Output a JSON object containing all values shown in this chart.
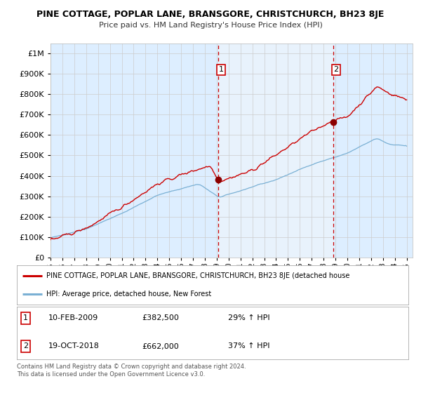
{
  "title": "PINE COTTAGE, POPLAR LANE, BRANSGORE, CHRISTCHURCH, BH23 8JE",
  "subtitle": "Price paid vs. HM Land Registry's House Price Index (HPI)",
  "legend_red": "PINE COTTAGE, POPLAR LANE, BRANSGORE, CHRISTCHURCH, BH23 8JE (detached house",
  "legend_blue": "HPI: Average price, detached house, New Forest",
  "marker1_date": "10-FEB-2009",
  "marker1_price": "£382,500",
  "marker1_hpi": "29% ↑ HPI",
  "marker1_year": 2009.11,
  "marker1_value": 382500,
  "marker2_date": "19-OCT-2018",
  "marker2_price": "£662,000",
  "marker2_hpi": "37% ↑ HPI",
  "marker2_year": 2018.8,
  "marker2_value": 662000,
  "footer1": "Contains HM Land Registry data © Crown copyright and database right 2024.",
  "footer2": "This data is licensed under the Open Government Licence v3.0.",
  "bg_color": "#ffffff",
  "grid_color": "#cccccc",
  "red_color": "#cc0000",
  "blue_color": "#7ab0d4",
  "shade_color": "#ddeeff",
  "ylim_max": 1050000,
  "ylim_min": 0,
  "start_year": 1995,
  "end_year": 2025
}
